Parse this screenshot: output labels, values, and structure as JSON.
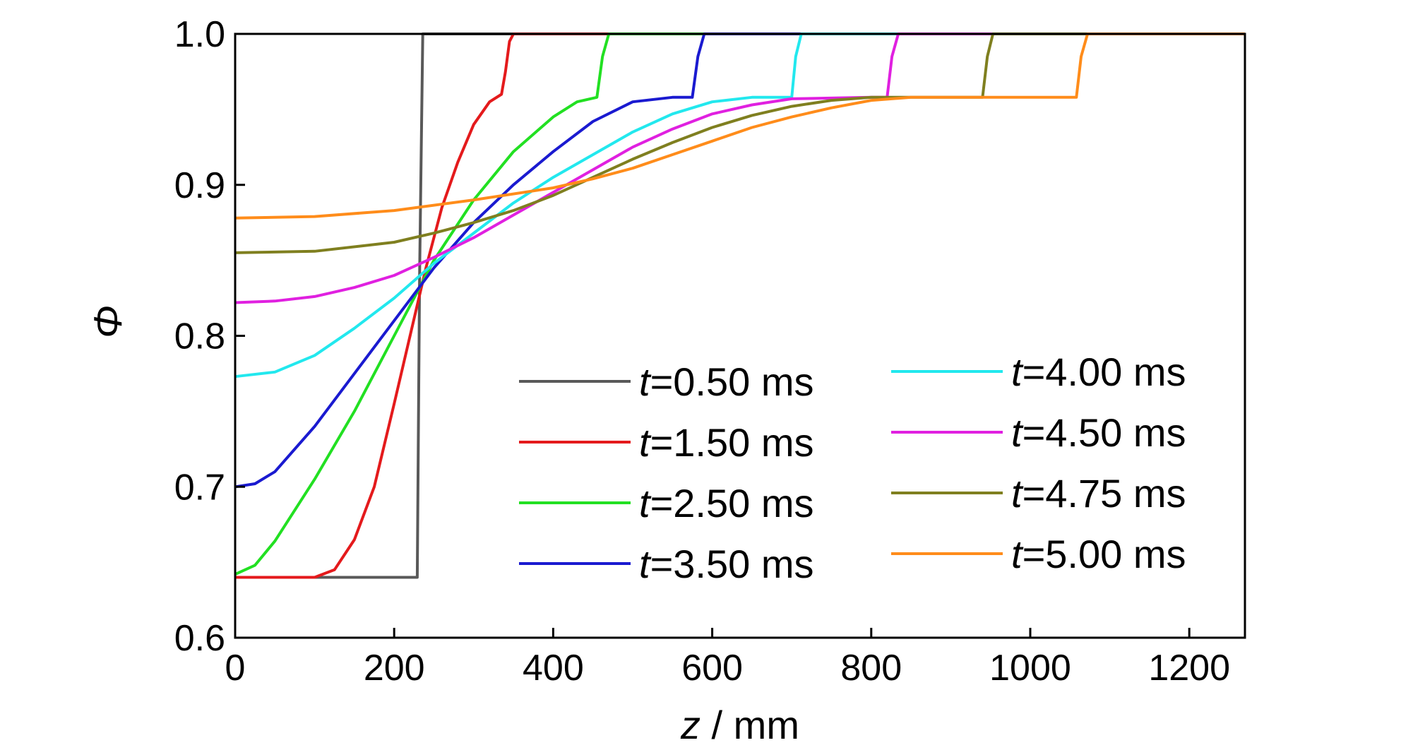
{
  "chart_data": {
    "type": "line",
    "xlabel": {
      "var": "z",
      "rest": " / mm"
    },
    "ylabel": "Φ",
    "xlim": [
      0,
      1270
    ],
    "ylim": [
      0.6,
      1.0
    ],
    "xticks": [
      0,
      200,
      400,
      600,
      800,
      1000,
      1200
    ],
    "xtick_labels": [
      "0",
      "200",
      "400",
      "600",
      "800",
      "1000",
      "1200"
    ],
    "yticks": [
      0.6,
      0.7,
      0.8,
      0.9,
      1.0
    ],
    "ytick_labels": [
      "0.6",
      "0.7",
      "0.8",
      "0.9",
      "1.0"
    ],
    "grid": false,
    "legend_position": "center-right",
    "series": [
      {
        "name": {
          "var": "t",
          "rest": "=0.50 ms"
        },
        "color": "#595959",
        "points": [
          [
            0,
            0.64
          ],
          [
            229,
            0.64
          ],
          [
            232,
            0.84
          ],
          [
            236,
            1.0
          ],
          [
            1270,
            1.0
          ]
        ]
      },
      {
        "name": {
          "var": "t",
          "rest": "=1.50 ms"
        },
        "color": "#e41a1c",
        "points": [
          [
            0,
            0.64
          ],
          [
            100,
            0.64
          ],
          [
            125,
            0.645
          ],
          [
            150,
            0.665
          ],
          [
            175,
            0.7
          ],
          [
            200,
            0.755
          ],
          [
            220,
            0.8
          ],
          [
            240,
            0.845
          ],
          [
            260,
            0.885
          ],
          [
            280,
            0.915
          ],
          [
            300,
            0.94
          ],
          [
            320,
            0.955
          ],
          [
            335,
            0.96
          ],
          [
            340,
            0.975
          ],
          [
            345,
            0.995
          ],
          [
            350,
            1.0
          ],
          [
            1270,
            1.0
          ]
        ]
      },
      {
        "name": {
          "var": "t",
          "rest": "=2.50 ms"
        },
        "color": "#22e022",
        "points": [
          [
            0,
            0.642
          ],
          [
            25,
            0.648
          ],
          [
            50,
            0.664
          ],
          [
            100,
            0.705
          ],
          [
            150,
            0.75
          ],
          [
            200,
            0.8
          ],
          [
            250,
            0.85
          ],
          [
            300,
            0.89
          ],
          [
            350,
            0.922
          ],
          [
            400,
            0.945
          ],
          [
            430,
            0.955
          ],
          [
            455,
            0.958
          ],
          [
            462,
            0.985
          ],
          [
            470,
            1.0
          ],
          [
            1270,
            1.0
          ]
        ]
      },
      {
        "name": {
          "var": "t",
          "rest": "=3.50 ms"
        },
        "color": "#1a1ad0",
        "points": [
          [
            0,
            0.7
          ],
          [
            25,
            0.702
          ],
          [
            50,
            0.71
          ],
          [
            100,
            0.74
          ],
          [
            150,
            0.775
          ],
          [
            200,
            0.81
          ],
          [
            250,
            0.845
          ],
          [
            300,
            0.875
          ],
          [
            350,
            0.9
          ],
          [
            400,
            0.922
          ],
          [
            450,
            0.942
          ],
          [
            500,
            0.955
          ],
          [
            550,
            0.958
          ],
          [
            575,
            0.958
          ],
          [
            582,
            0.985
          ],
          [
            590,
            1.0
          ],
          [
            1270,
            1.0
          ]
        ]
      },
      {
        "name": {
          "var": "t",
          "rest": "=4.00 ms"
        },
        "color": "#22e8ee",
        "points": [
          [
            0,
            0.773
          ],
          [
            50,
            0.776
          ],
          [
            100,
            0.787
          ],
          [
            150,
            0.805
          ],
          [
            200,
            0.825
          ],
          [
            250,
            0.848
          ],
          [
            300,
            0.868
          ],
          [
            350,
            0.888
          ],
          [
            400,
            0.905
          ],
          [
            450,
            0.92
          ],
          [
            500,
            0.935
          ],
          [
            550,
            0.947
          ],
          [
            600,
            0.955
          ],
          [
            650,
            0.958
          ],
          [
            700,
            0.958
          ],
          [
            705,
            0.985
          ],
          [
            712,
            1.0
          ],
          [
            1270,
            1.0
          ]
        ]
      },
      {
        "name": {
          "var": "t",
          "rest": "=4.50 ms"
        },
        "color": "#e020e0",
        "points": [
          [
            0,
            0.822
          ],
          [
            50,
            0.823
          ],
          [
            100,
            0.826
          ],
          [
            150,
            0.832
          ],
          [
            200,
            0.84
          ],
          [
            250,
            0.852
          ],
          [
            300,
            0.865
          ],
          [
            350,
            0.88
          ],
          [
            400,
            0.895
          ],
          [
            450,
            0.91
          ],
          [
            500,
            0.925
          ],
          [
            550,
            0.937
          ],
          [
            600,
            0.947
          ],
          [
            650,
            0.953
          ],
          [
            700,
            0.957
          ],
          [
            800,
            0.958
          ],
          [
            820,
            0.958
          ],
          [
            826,
            0.985
          ],
          [
            834,
            1.0
          ],
          [
            1270,
            1.0
          ]
        ]
      },
      {
        "name": {
          "var": "t",
          "rest": "=4.75 ms"
        },
        "color": "#7f7f1f",
        "points": [
          [
            0,
            0.855
          ],
          [
            100,
            0.856
          ],
          [
            200,
            0.862
          ],
          [
            250,
            0.868
          ],
          [
            300,
            0.875
          ],
          [
            350,
            0.883
          ],
          [
            400,
            0.893
          ],
          [
            450,
            0.905
          ],
          [
            500,
            0.917
          ],
          [
            550,
            0.928
          ],
          [
            600,
            0.938
          ],
          [
            650,
            0.946
          ],
          [
            700,
            0.952
          ],
          [
            750,
            0.956
          ],
          [
            800,
            0.958
          ],
          [
            940,
            0.958
          ],
          [
            946,
            0.985
          ],
          [
            953,
            1.0
          ],
          [
            1270,
            1.0
          ]
        ]
      },
      {
        "name": {
          "var": "t",
          "rest": "=5.00 ms"
        },
        "color": "#ff8c1a",
        "points": [
          [
            0,
            0.878
          ],
          [
            100,
            0.879
          ],
          [
            200,
            0.883
          ],
          [
            300,
            0.89
          ],
          [
            400,
            0.898
          ],
          [
            450,
            0.904
          ],
          [
            500,
            0.911
          ],
          [
            550,
            0.92
          ],
          [
            600,
            0.929
          ],
          [
            650,
            0.938
          ],
          [
            700,
            0.945
          ],
          [
            750,
            0.951
          ],
          [
            800,
            0.956
          ],
          [
            850,
            0.958
          ],
          [
            1000,
            0.958
          ],
          [
            1058,
            0.958
          ],
          [
            1064,
            0.985
          ],
          [
            1072,
            1.0
          ],
          [
            1270,
            1.0
          ]
        ]
      }
    ]
  }
}
